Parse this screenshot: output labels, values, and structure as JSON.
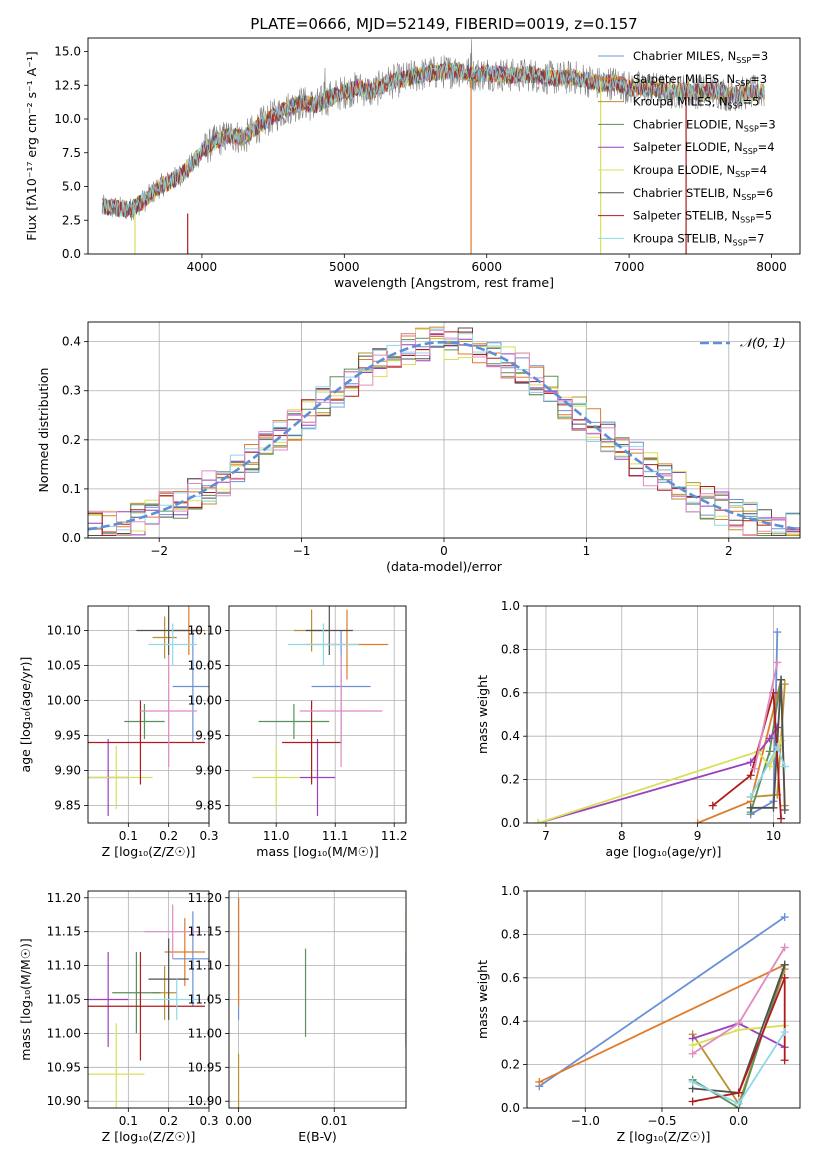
{
  "figure": {
    "title": "PLATE=0666, MJD=52149, FIBERID=0019, z=0.157"
  },
  "colors": [
    "#6a90d8",
    "#e07b2a",
    "#b8912e",
    "#5c8f5c",
    "#9b3fbf",
    "#d8e05a",
    "#505050",
    "#b01c1c",
    "#8fd8e8",
    "#e08bc0"
  ],
  "chart_data": [
    {
      "id": "spectrum",
      "type": "line",
      "title": "PLATE=0666, MJD=52149, FIBERID=0019, z=0.157",
      "xlabel": "wavelength [Angstrom, rest frame]",
      "ylabel": "Flux [f$_\\lambda$10$^{-17}$ erg cm$^{-2}$ s$^{-1}$ A$^{-1}$]",
      "ylabel_display": "Flux [fλ10⁻¹⁷ erg cm⁻² s⁻¹ A⁻¹]",
      "xlim": [
        3200,
        8200
      ],
      "ylim": [
        0,
        16
      ],
      "xticks": [
        4000,
        5000,
        6000,
        7000,
        8000
      ],
      "yticks": [
        0.0,
        2.5,
        5.0,
        7.5,
        10.0,
        12.5,
        15.0
      ],
      "grid": false,
      "legend_position": "right",
      "x": [
        3300,
        3400,
        3500,
        3600,
        3700,
        3800,
        3900,
        4000,
        4100,
        4200,
        4300,
        4400,
        4500,
        4600,
        4700,
        4800,
        4900,
        5000,
        5100,
        5200,
        5300,
        5400,
        5500,
        5600,
        5700,
        5800,
        5900,
        6000,
        6100,
        6200,
        6300,
        6400,
        6500,
        6600,
        6700,
        6800,
        6900,
        7000,
        7100,
        7200,
        7300,
        7400,
        7500,
        7600,
        7700,
        7800,
        7900
      ],
      "y_model": [
        3.5,
        3.4,
        3.3,
        4.0,
        5.0,
        5.5,
        6.3,
        7.6,
        8.4,
        8.8,
        8.6,
        9.5,
        10.2,
        10.8,
        11.2,
        11.0,
        11.6,
        12.0,
        12.3,
        12.0,
        12.7,
        12.9,
        13.2,
        13.4,
        13.5,
        13.6,
        13.3,
        13.4,
        13.3,
        13.2,
        13.3,
        13.1,
        13.0,
        13.1,
        12.9,
        12.6,
        12.7,
        12.3,
        12.3,
        12.2,
        12.0,
        12.1,
        12.0,
        12.1,
        11.8,
        11.9,
        12.0
      ],
      "series": [
        {
          "name": "Chabrier MILES, N$_{SSP}$=3",
          "label": "Chabrier MILES, N",
          "sub": "SSP",
          "n": "=3"
        },
        {
          "name": "Salpeter MILES, N$_{SSP}$=3",
          "label": "Salpeter MILES, N",
          "sub": "SSP",
          "n": "=3"
        },
        {
          "name": "Kroupa MILES, N$_{SSP}$=5",
          "label": "Kroupa MILES, N",
          "sub": "SSP",
          "n": "=5"
        },
        {
          "name": "Chabrier ELODIE, N$_{SSP}$=3",
          "label": "Chabrier ELODIE, N",
          "sub": "SSP",
          "n": "=3"
        },
        {
          "name": "Salpeter ELODIE, N$_{SSP}$=4",
          "label": "Salpeter ELODIE, N",
          "sub": "SSP",
          "n": "=4"
        },
        {
          "name": "Kroupa ELODIE, N$_{SSP}$=4",
          "label": "Kroupa ELODIE, N",
          "sub": "SSP",
          "n": "=4"
        },
        {
          "name": "Chabrier STELIB, N$_{SSP}$=6",
          "label": "Chabrier STELIB, N",
          "sub": "SSP",
          "n": "=6"
        },
        {
          "name": "Salpeter STELIB, N$_{SSP}$=5",
          "label": "Salpeter STELIB, N",
          "sub": "SSP",
          "n": "=5"
        },
        {
          "name": "Kroupa STELIB, N$_{SSP}$=7",
          "label": "Kroupa STELIB, N",
          "sub": "SSP",
          "n": "=7"
        }
      ]
    },
    {
      "id": "residuals",
      "type": "line",
      "xlabel": "(data-model)/error",
      "ylabel": "Normed distribution",
      "xlim": [
        -2.5,
        2.5
      ],
      "ylim": [
        0,
        0.44
      ],
      "xticks": [
        -2,
        -1,
        0,
        1,
        2
      ],
      "yticks": [
        0.0,
        0.1,
        0.2,
        0.3,
        0.4
      ],
      "grid": true,
      "legend": "𝒩(0, 1)",
      "legend_position": "top-right",
      "bin_width": 0.1,
      "bins_per_series": 50
    },
    {
      "id": "age_vs_Z",
      "type": "scatter",
      "xlabel": "Z [log$_{10}$(Z/Z$_\\odot$)]",
      "xlabel_display": "Z [log₁₀(Z/Z☉)]",
      "ylabel": "age  [log$_{10}$(age/yr)]",
      "ylabel_display": "age  [log₁₀(age/yr)]",
      "xlim": [
        0.0,
        0.3
      ],
      "ylim": [
        9.825,
        10.135
      ],
      "xticks": [
        0.1,
        0.2,
        0.3
      ],
      "yticks": [
        9.85,
        9.9,
        9.95,
        10.0,
        10.05,
        10.1
      ],
      "grid": true,
      "points": [
        {
          "x": 0.26,
          "xerr": 0.05,
          "y": 10.02,
          "yerr": 0.08
        },
        {
          "x": 0.25,
          "xerr": 0.04,
          "y": 10.1,
          "yerr": 0.035
        },
        {
          "x": 0.19,
          "xerr": 0.03,
          "y": 10.09,
          "yerr": 0.03
        },
        {
          "x": 0.14,
          "xerr": 0.05,
          "y": 9.97,
          "yerr": 0.025
        },
        {
          "x": 0.05,
          "xerr": 0.05,
          "y": 9.89,
          "yerr": 0.055
        },
        {
          "x": 0.07,
          "xerr": 0.09,
          "y": 9.89,
          "yerr": 0.045
        },
        {
          "x": 0.2,
          "xerr": 0.08,
          "y": 10.1,
          "yerr": 0.035
        },
        {
          "x": 0.13,
          "xerr": 0.16,
          "y": 9.94,
          "yerr": 0.06
        },
        {
          "x": 0.21,
          "xerr": 0.06,
          "y": 10.08,
          "yerr": 0.03
        },
        {
          "x": 0.2,
          "xerr": 0.07,
          "y": 9.985,
          "yerr": 0.08
        }
      ]
    },
    {
      "id": "age_vs_mass",
      "type": "scatter",
      "xlabel": "mass [log$_{10}$(M/M$_\\odot$)]",
      "xlabel_display": "mass [log₁₀(M/M☉)]",
      "xlim": [
        10.92,
        11.22
      ],
      "ylim": [
        9.825,
        10.135
      ],
      "xticks": [
        11.0,
        11.1,
        11.2
      ],
      "yticks": [
        9.85,
        9.9,
        9.95,
        10.0,
        10.05,
        10.1
      ],
      "grid": true,
      "points": [
        {
          "x": 11.11,
          "xerr": 0.05,
          "y": 10.02,
          "yerr": 0.08
        },
        {
          "x": 11.12,
          "xerr": 0.07,
          "y": 10.08,
          "yerr": 0.05
        },
        {
          "x": 11.06,
          "xerr": 0.03,
          "y": 10.1,
          "yerr": 0.03
        },
        {
          "x": 11.03,
          "xerr": 0.06,
          "y": 9.97,
          "yerr": 0.025
        },
        {
          "x": 11.07,
          "xerr": 0.03,
          "y": 9.89,
          "yerr": 0.055
        },
        {
          "x": 11.0,
          "xerr": 0.04,
          "y": 9.89,
          "yerr": 0.045
        },
        {
          "x": 11.09,
          "xerr": 0.04,
          "y": 10.1,
          "yerr": 0.035
        },
        {
          "x": 11.06,
          "xerr": 0.05,
          "y": 9.94,
          "yerr": 0.06
        },
        {
          "x": 11.08,
          "xerr": 0.06,
          "y": 10.08,
          "yerr": 0.03
        },
        {
          "x": 11.11,
          "xerr": 0.07,
          "y": 9.985,
          "yerr": 0.08
        }
      ]
    },
    {
      "id": "weight_vs_age",
      "type": "line",
      "xlabel": "age  [log$_{10}$(age/yr)]",
      "xlabel_display": "age  [log₁₀(age/yr)]",
      "ylabel": "mass weight",
      "xlim": [
        6.75,
        10.35
      ],
      "ylim": [
        0,
        1.0
      ],
      "xticks": [
        7,
        8,
        9,
        10
      ],
      "yticks": [
        0.0,
        0.2,
        0.4,
        0.6,
        0.8,
        1.0
      ],
      "grid": true,
      "series": [
        {
          "x": [
            9.7,
            10.0,
            10.05
          ],
          "y": [
            0.04,
            0.1,
            0.88
          ]
        },
        {
          "x": [
            9.0,
            9.7,
            10.1,
            10.15
          ],
          "y": [
            0.0,
            0.1,
            0.66,
            0.08
          ]
        },
        {
          "x": [
            9.7,
            10.05,
            10.15
          ],
          "y": [
            0.12,
            0.13,
            0.64
          ]
        },
        {
          "x": [
            9.7,
            9.95,
            10.1
          ],
          "y": [
            0.05,
            0.33,
            0.66
          ]
        },
        {
          "x": [
            6.9,
            9.7,
            9.95,
            10.05
          ],
          "y": [
            0.0,
            0.28,
            0.39,
            0.44
          ]
        },
        {
          "x": [
            6.9,
            9.8,
            9.95,
            10.1
          ],
          "y": [
            0.0,
            0.33,
            0.26,
            0.38
          ]
        },
        {
          "x": [
            9.7,
            10.0,
            10.1,
            10.15
          ],
          "y": [
            0.07,
            0.07,
            0.66,
            0.06
          ]
        },
        {
          "x": [
            9.2,
            9.7,
            10.0,
            10.1
          ],
          "y": [
            0.08,
            0.22,
            0.6,
            0.02
          ]
        },
        {
          "x": [
            9.7,
            10.05,
            10.15
          ],
          "y": [
            0.12,
            0.35,
            0.26
          ]
        },
        {
          "x": [
            9.75,
            10.05
          ],
          "y": [
            0.25,
            0.74
          ]
        }
      ]
    },
    {
      "id": "mass_vs_Z",
      "type": "scatter",
      "xlabel": "Z [log$_{10}$(Z/Z$_\\odot$)]",
      "xlabel_display": "Z [log₁₀(Z/Z☉)]",
      "ylabel": "mass [log$_{10}$(M/M$_\\odot$)]",
      "ylabel_display": "mass [log₁₀(M/M☉)]",
      "xlim": [
        0.0,
        0.3
      ],
      "ylim": [
        10.89,
        11.21
      ],
      "xticks": [
        0.1,
        0.2,
        0.3
      ],
      "yticks": [
        10.9,
        10.95,
        11.0,
        11.05,
        11.1,
        11.15,
        11.2
      ],
      "grid": true,
      "points": [
        {
          "x": 0.26,
          "xerr": 0.05,
          "y": 11.11,
          "yerr": 0.07
        },
        {
          "x": 0.24,
          "xerr": 0.05,
          "y": 11.12,
          "yerr": 0.05
        },
        {
          "x": 0.19,
          "xerr": 0.03,
          "y": 11.06,
          "yerr": 0.04
        },
        {
          "x": 0.12,
          "xerr": 0.06,
          "y": 11.06,
          "yerr": 0.06
        },
        {
          "x": 0.05,
          "xerr": 0.05,
          "y": 11.05,
          "yerr": 0.07
        },
        {
          "x": 0.07,
          "xerr": 0.07,
          "y": 10.94,
          "yerr": 0.075
        },
        {
          "x": 0.2,
          "xerr": 0.05,
          "y": 11.08,
          "yerr": 0.06
        },
        {
          "x": 0.13,
          "xerr": 0.16,
          "y": 11.04,
          "yerr": 0.08
        },
        {
          "x": 0.22,
          "xerr": 0.06,
          "y": 11.05,
          "yerr": 0.03
        },
        {
          "x": 0.21,
          "xerr": 0.07,
          "y": 11.15,
          "yerr": 0.04
        }
      ]
    },
    {
      "id": "mass_vs_ebv",
      "type": "scatter",
      "xlabel": "E(B-V)",
      "xlim": [
        -0.001,
        0.0175
      ],
      "ylim": [
        10.89,
        11.21
      ],
      "xticks": [
        0.0,
        0.01
      ],
      "yticks": [
        10.9,
        10.95,
        11.0,
        11.05,
        11.1,
        11.15,
        11.2
      ],
      "grid": true,
      "points": [
        {
          "x": 0.0,
          "y": 11.11,
          "yerr": 0.09
        },
        {
          "x": 0.0,
          "y": 11.12,
          "yerr": 0.08
        },
        {
          "x": 0.0,
          "y": 10.93,
          "yerr": 0.04
        },
        {
          "x": 0.007,
          "y": 11.06,
          "yerr": 0.065
        },
        {
          "x": 0.0175,
          "y": 11.05,
          "yerr": 0.07
        },
        {
          "x": 0.0175,
          "y": 11.12,
          "yerr": 0.06
        }
      ]
    },
    {
      "id": "weight_vs_Z",
      "type": "line",
      "xlabel": "Z [log$_{10}$(Z/Z$_\\odot$)]",
      "xlabel_display": "Z [log₁₀(Z/Z☉)]",
      "ylabel": "mass weight",
      "xlim": [
        -1.38,
        0.4
      ],
      "ylim": [
        0,
        1.0
      ],
      "xticks": [
        -1.0,
        -0.5,
        0.0
      ],
      "yticks": [
        0.0,
        0.2,
        0.4,
        0.6,
        0.8,
        1.0
      ],
      "grid": true,
      "series": [
        {
          "x": [
            -1.3,
            0.3
          ],
          "y": [
            0.1,
            0.88
          ]
        },
        {
          "x": [
            -1.3,
            0.3
          ],
          "y": [
            0.12,
            0.66
          ]
        },
        {
          "x": [
            -0.3,
            0.0,
            0.3
          ],
          "y": [
            0.34,
            0.02,
            0.64
          ]
        },
        {
          "x": [
            -0.3,
            0.0,
            0.3
          ],
          "y": [
            0.13,
            0.0,
            0.66
          ]
        },
        {
          "x": [
            -0.3,
            0.0,
            0.3
          ],
          "y": [
            0.32,
            0.39,
            0.28
          ]
        },
        {
          "x": [
            -0.3,
            0.0,
            0.3
          ],
          "y": [
            0.29,
            0.36,
            0.38
          ]
        },
        {
          "x": [
            -0.3,
            0.0,
            0.3
          ],
          "y": [
            0.09,
            0.07,
            0.66
          ]
        },
        {
          "x": [
            -0.3,
            0.0,
            0.3,
            0.3
          ],
          "y": [
            0.03,
            0.07,
            0.6,
            0.22
          ]
        },
        {
          "x": [
            -0.3,
            0.0,
            0.3
          ],
          "y": [
            0.12,
            0.02,
            0.35
          ]
        },
        {
          "x": [
            -0.3,
            0.0,
            0.3
          ],
          "y": [
            0.25,
            0.39,
            0.74
          ]
        }
      ]
    }
  ]
}
